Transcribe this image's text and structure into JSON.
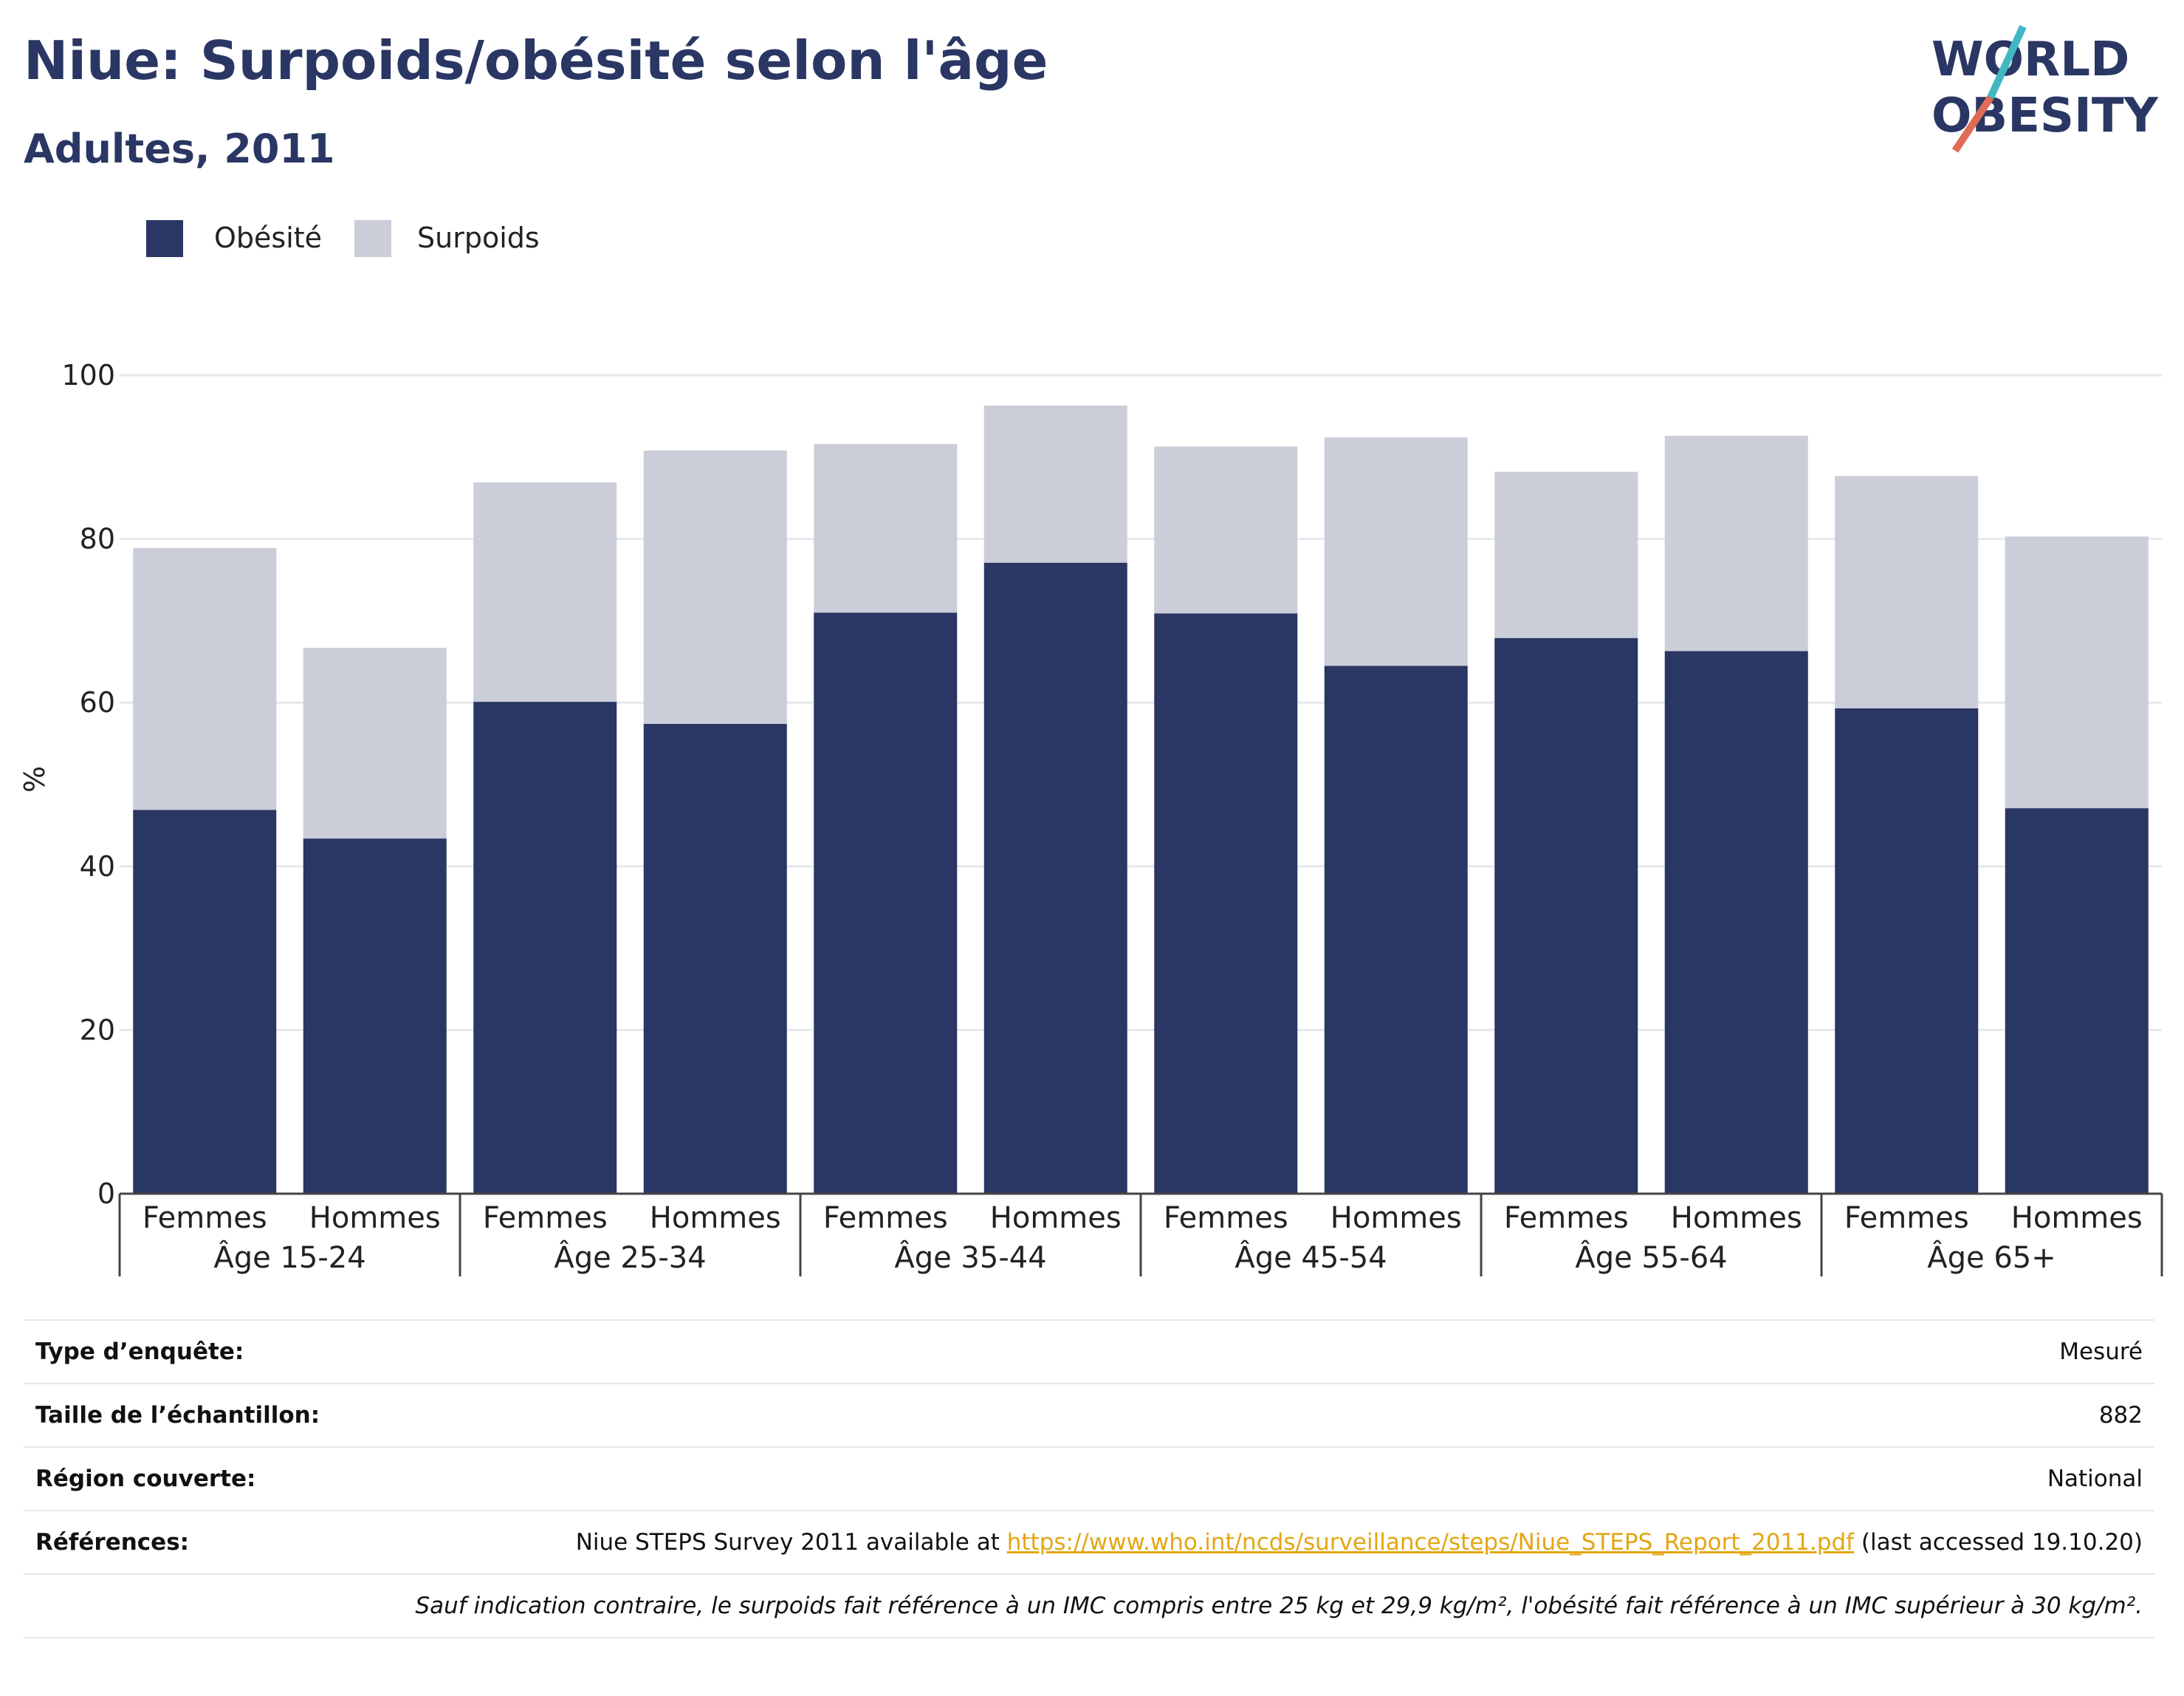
{
  "header": {
    "title": "Niue: Surpoids/obésité selon l'âge",
    "subtitle": "Adultes, 2011",
    "logo_line1": "WORLD",
    "logo_line2": "OBESITY"
  },
  "legend": {
    "items": [
      {
        "label": "Obésité",
        "color": "#2a3663"
      },
      {
        "label": "Surpoids",
        "color": "#cbcdd9"
      }
    ]
  },
  "chart_data": {
    "type": "bar",
    "stacked": true,
    "ylabel": "%",
    "ylim": [
      0,
      100
    ],
    "yticks": [
      0,
      20,
      40,
      60,
      80,
      100
    ],
    "grid": true,
    "legend_position": "top-left",
    "groups": [
      "Âge 15-24",
      "Âge 25-34",
      "Âge 35-44",
      "Âge 45-54",
      "Âge 55-64",
      "Âge 65+"
    ],
    "categories": [
      "Femmes",
      "Hommes",
      "Femmes",
      "Hommes",
      "Femmes",
      "Hommes",
      "Femmes",
      "Hommes",
      "Femmes",
      "Hommes",
      "Femmes",
      "Hommes"
    ],
    "series": [
      {
        "name": "Obésité",
        "color": "#2a3663",
        "values": [
          46.9,
          43.4,
          60.1,
          57.4,
          71.0,
          77.1,
          70.9,
          64.5,
          67.9,
          66.3,
          59.3,
          47.1
        ]
      },
      {
        "name": "Surpoids",
        "color": "#cbcdd9",
        "values": [
          32.0,
          23.3,
          26.8,
          33.4,
          20.6,
          19.2,
          20.4,
          27.9,
          20.3,
          26.3,
          28.4,
          33.2
        ]
      }
    ]
  },
  "info": {
    "survey_type_label": "Type d’enquête:",
    "survey_type_value": "Mesuré",
    "sample_label": "Taille de l’échantillon:",
    "sample_value": "882",
    "region_label": "Région couverte:",
    "region_value": "National",
    "ref_label": "Références:",
    "ref_prefix": "Niue STEPS Survey 2011 available at",
    "ref_link": "https://www.who.int/ncds/surveillance/steps/Niue_STEPS_Report_2011.pdf",
    "ref_suffix": "(last accessed 19.10.20)",
    "footnote": "Sauf indication contraire, le surpoids fait référence à un IMC compris entre 25 kg et 29,9 kg/m², l'obésité fait référence à un IMC supérieur à 30 kg/m²."
  }
}
